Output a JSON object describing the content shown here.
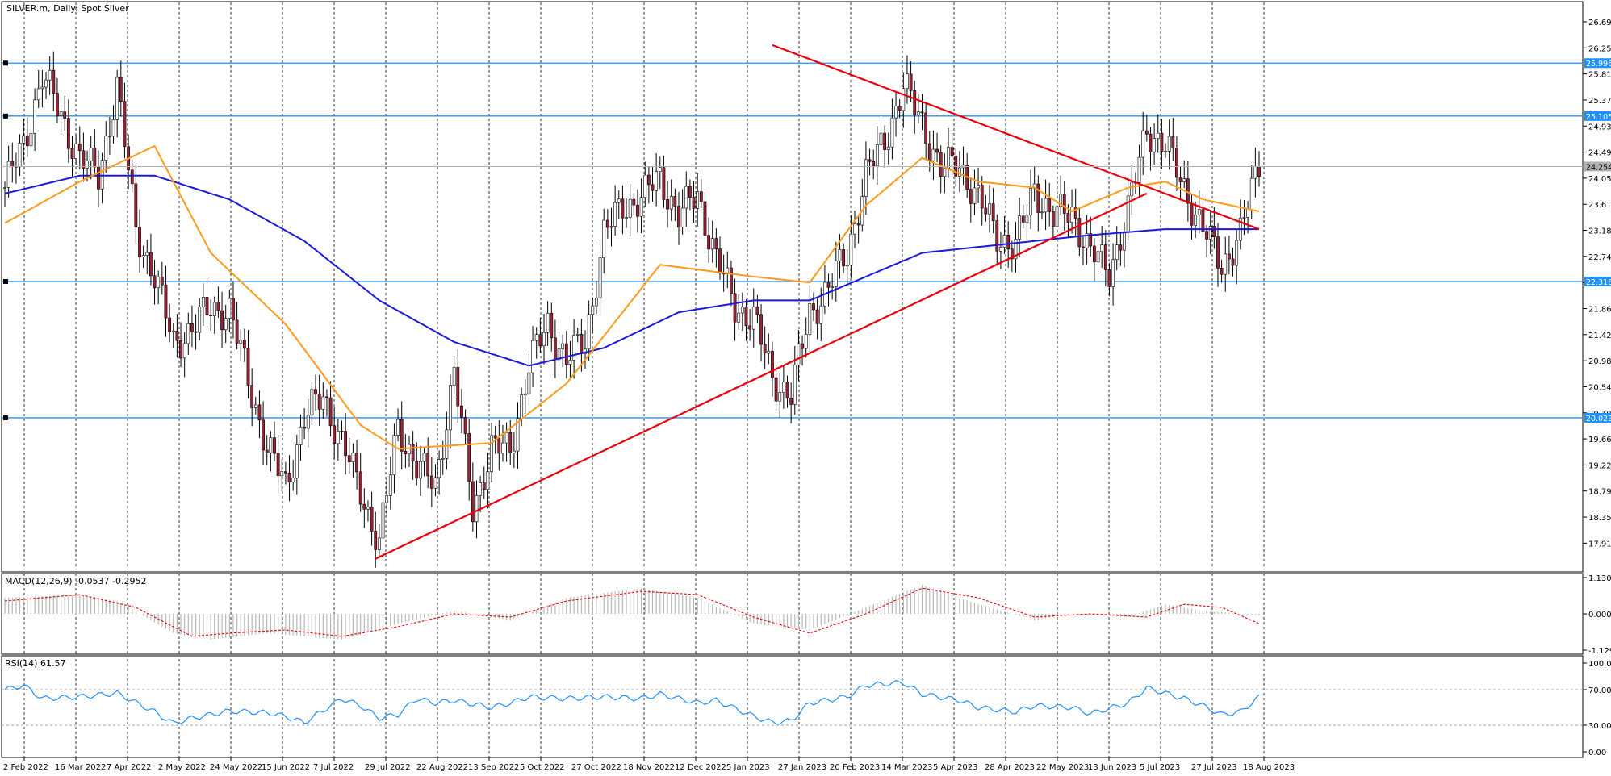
{
  "chart_data": [
    {
      "type": "candlestick",
      "title": "SILVER.m, Daily:  Spot Silver",
      "ylim": [
        17.55,
        26.95
      ],
      "y_ticks": [
        "26.692",
        "26.253",
        "25.814",
        "25.375",
        "24.936",
        "24.497",
        "24.058",
        "23.619",
        "23.180",
        "22.741",
        "22.302",
        "21.863",
        "21.424",
        "20.985",
        "20.546",
        "20.107",
        "19.668",
        "19.229",
        "18.790",
        "18.351",
        "17.912"
      ],
      "x_ticks": [
        "2 Feb 2022",
        "16 Mar 2022",
        "7 Apr 2022",
        "2 May 2022",
        "24 May 2022",
        "15 Jun 2022",
        "7 Jul 2022",
        "29 Jul 2022",
        "22 Aug 2022",
        "13 Sep 2022",
        "5 Oct 2022",
        "27 Oct 2022",
        "18 Nov 2022",
        "12 Dec 2022",
        "5 Jan 2023",
        "27 Jan 2023",
        "20 Feb 2023",
        "14 Mar 2023",
        "5 Apr 2023",
        "28 Apr 2023",
        "22 May 2023",
        "13 Jun 2023",
        "5 Jul 2023",
        "27 Jul 2023",
        "18 Aug 2023"
      ],
      "close_path": [
        [
          0,
          23.9
        ],
        [
          5,
          24.6
        ],
        [
          10,
          25.8
        ],
        [
          15,
          25.1
        ],
        [
          20,
          24.4
        ],
        [
          25,
          24.1
        ],
        [
          30,
          25.6
        ],
        [
          35,
          23.2
        ],
        [
          40,
          22.4
        ],
        [
          45,
          21.3
        ],
        [
          50,
          21.5
        ],
        [
          55,
          21.9
        ],
        [
          60,
          21.8
        ],
        [
          65,
          20.7
        ],
        [
          70,
          19.5
        ],
        [
          75,
          18.9
        ],
        [
          80,
          20.0
        ],
        [
          85,
          20.4
        ],
        [
          90,
          19.6
        ],
        [
          95,
          18.8
        ],
        [
          100,
          17.9
        ],
        [
          105,
          19.9
        ],
        [
          110,
          19.2
        ],
        [
          115,
          18.9
        ],
        [
          120,
          20.8
        ],
        [
          125,
          18.5
        ],
        [
          130,
          19.5
        ],
        [
          135,
          19.5
        ],
        [
          140,
          20.9
        ],
        [
          145,
          21.6
        ],
        [
          150,
          21.0
        ],
        [
          155,
          21.3
        ],
        [
          160,
          23.1
        ],
        [
          165,
          23.6
        ],
        [
          170,
          23.7
        ],
        [
          175,
          24.1
        ],
        [
          180,
          23.4
        ],
        [
          185,
          23.8
        ],
        [
          190,
          22.7
        ],
        [
          195,
          21.9
        ],
        [
          200,
          21.7
        ],
        [
          205,
          20.7
        ],
        [
          210,
          20.4
        ],
        [
          215,
          21.8
        ],
        [
          220,
          22.2
        ],
        [
          225,
          22.8
        ],
        [
          230,
          24.1
        ],
        [
          235,
          24.7
        ],
        [
          240,
          25.6
        ],
        [
          245,
          25.0
        ],
        [
          250,
          24.2
        ],
        [
          255,
          24.3
        ],
        [
          260,
          23.7
        ],
        [
          265,
          23.1
        ],
        [
          270,
          22.9
        ],
        [
          275,
          23.9
        ],
        [
          280,
          23.4
        ],
        [
          285,
          23.5
        ],
        [
          290,
          22.8
        ],
        [
          295,
          22.5
        ],
        [
          300,
          23.5
        ],
        [
          305,
          24.9
        ],
        [
          310,
          24.6
        ],
        [
          315,
          23.9
        ],
        [
          320,
          23.2
        ],
        [
          325,
          22.6
        ],
        [
          330,
          23.1
        ],
        [
          335,
          24.33
        ]
      ],
      "sma_fast_path": [
        [
          0,
          23.3
        ],
        [
          20,
          24.0
        ],
        [
          40,
          24.6
        ],
        [
          55,
          22.8
        ],
        [
          75,
          21.6
        ],
        [
          95,
          19.9
        ],
        [
          105,
          19.5
        ],
        [
          130,
          19.6
        ],
        [
          150,
          20.6
        ],
        [
          175,
          22.6
        ],
        [
          200,
          22.4
        ],
        [
          215,
          22.3
        ],
        [
          230,
          23.6
        ],
        [
          245,
          24.4
        ],
        [
          260,
          24.0
        ],
        [
          275,
          23.9
        ],
        [
          285,
          23.5
        ],
        [
          300,
          23.9
        ],
        [
          310,
          24.0
        ],
        [
          320,
          23.7
        ],
        [
          335,
          23.5
        ]
      ],
      "sma_slow_path": [
        [
          0,
          23.8
        ],
        [
          20,
          24.1
        ],
        [
          40,
          24.1
        ],
        [
          60,
          23.7
        ],
        [
          80,
          23.0
        ],
        [
          100,
          22.0
        ],
        [
          120,
          21.3
        ],
        [
          140,
          20.9
        ],
        [
          160,
          21.2
        ],
        [
          180,
          21.8
        ],
        [
          200,
          22.0
        ],
        [
          215,
          22.0
        ],
        [
          230,
          22.4
        ],
        [
          245,
          22.8
        ],
        [
          260,
          22.9
        ],
        [
          275,
          23.0
        ],
        [
          290,
          23.1
        ],
        [
          310,
          23.2
        ],
        [
          335,
          23.2
        ]
      ],
      "horizontal_levels": [
        "25.996",
        "25.105",
        "22.318",
        "20.023"
      ],
      "current_price": "24.254",
      "trendlines": [
        {
          "from": [
            99,
            17.65
          ],
          "to": [
            305,
            23.8
          ]
        },
        {
          "from": [
            205,
            26.3
          ],
          "to": [
            335,
            23.2
          ]
        }
      ]
    },
    {
      "type": "histogram",
      "title": "MACD(12,26,9) -0.0537 -0.2952",
      "ylim": [
        -1.1295,
        1.13
      ],
      "y_ticks": [
        "1.1300",
        "0.0000",
        "-1.1295"
      ],
      "macd_path": [
        [
          0,
          0.5
        ],
        [
          20,
          0.6
        ],
        [
          30,
          0.4
        ],
        [
          45,
          -0.6
        ],
        [
          55,
          -0.8
        ],
        [
          70,
          -0.6
        ],
        [
          90,
          -0.8
        ],
        [
          105,
          -0.3
        ],
        [
          120,
          0.1
        ],
        [
          135,
          -0.2
        ],
        [
          150,
          0.5
        ],
        [
          170,
          0.8
        ],
        [
          185,
          0.5
        ],
        [
          200,
          -0.3
        ],
        [
          215,
          -0.5
        ],
        [
          230,
          0.2
        ],
        [
          245,
          0.9
        ],
        [
          260,
          0.3
        ],
        [
          275,
          -0.2
        ],
        [
          285,
          0.0
        ],
        [
          300,
          -0.1
        ],
        [
          310,
          0.3
        ],
        [
          320,
          0.1
        ],
        [
          335,
          -0.05
        ]
      ],
      "signal_path": [
        [
          0,
          0.4
        ],
        [
          20,
          0.6
        ],
        [
          35,
          0.2
        ],
        [
          50,
          -0.7
        ],
        [
          60,
          -0.6
        ],
        [
          75,
          -0.5
        ],
        [
          90,
          -0.7
        ],
        [
          105,
          -0.4
        ],
        [
          120,
          0.0
        ],
        [
          135,
          -0.1
        ],
        [
          150,
          0.4
        ],
        [
          170,
          0.7
        ],
        [
          185,
          0.6
        ],
        [
          200,
          -0.1
        ],
        [
          215,
          -0.6
        ],
        [
          230,
          0.0
        ],
        [
          245,
          0.8
        ],
        [
          260,
          0.5
        ],
        [
          275,
          -0.1
        ],
        [
          290,
          0.0
        ],
        [
          305,
          -0.1
        ],
        [
          315,
          0.3
        ],
        [
          325,
          0.2
        ],
        [
          335,
          -0.3
        ]
      ]
    },
    {
      "type": "line",
      "title": "RSI(14) 61.57",
      "ylim": [
        0,
        100
      ],
      "y_ticks": [
        "100.00",
        "70.00",
        "30.00",
        "0.00"
      ],
      "rsi_path": [
        [
          0,
          70
        ],
        [
          5,
          75
        ],
        [
          10,
          60
        ],
        [
          20,
          62
        ],
        [
          30,
          66
        ],
        [
          40,
          45
        ],
        [
          45,
          32
        ],
        [
          50,
          38
        ],
        [
          60,
          46
        ],
        [
          70,
          44
        ],
        [
          75,
          40
        ],
        [
          80,
          33
        ],
        [
          90,
          60
        ],
        [
          95,
          52
        ],
        [
          100,
          38
        ],
        [
          105,
          42
        ],
        [
          110,
          60
        ],
        [
          115,
          55
        ],
        [
          120,
          58
        ],
        [
          130,
          50
        ],
        [
          135,
          55
        ],
        [
          140,
          62
        ],
        [
          150,
          60
        ],
        [
          160,
          62
        ],
        [
          170,
          60
        ],
        [
          175,
          65
        ],
        [
          185,
          55
        ],
        [
          190,
          58
        ],
        [
          200,
          40
        ],
        [
          205,
          33
        ],
        [
          210,
          35
        ],
        [
          215,
          55
        ],
        [
          225,
          62
        ],
        [
          230,
          75
        ],
        [
          240,
          78
        ],
        [
          245,
          65
        ],
        [
          255,
          58
        ],
        [
          260,
          50
        ],
        [
          270,
          45
        ],
        [
          275,
          52
        ],
        [
          285,
          50
        ],
        [
          290,
          43
        ],
        [
          300,
          55
        ],
        [
          305,
          72
        ],
        [
          315,
          60
        ],
        [
          320,
          52
        ],
        [
          325,
          42
        ],
        [
          330,
          45
        ],
        [
          335,
          61.57
        ]
      ]
    }
  ]
}
